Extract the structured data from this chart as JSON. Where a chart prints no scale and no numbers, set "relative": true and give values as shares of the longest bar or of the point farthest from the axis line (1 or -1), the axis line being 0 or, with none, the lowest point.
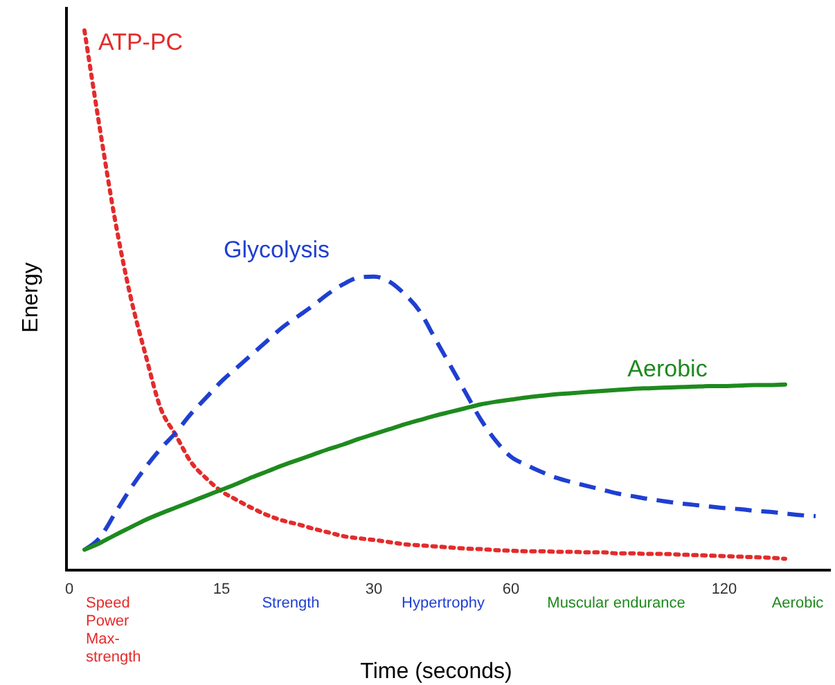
{
  "chart_data": {
    "type": "line",
    "relative": true,
    "xlabel": "Time (seconds)",
    "ylabel": "Energy",
    "categories": [
      "0",
      null,
      null,
      null,
      null,
      null,
      null,
      null,
      null,
      null,
      "15",
      null,
      null,
      null,
      null,
      null,
      null,
      null,
      null,
      null,
      "30",
      null,
      null,
      null,
      null,
      null,
      null,
      null,
      null,
      "60",
      null,
      null,
      null,
      null,
      null,
      null,
      null,
      null,
      null,
      null,
      null,
      null,
      null,
      "120",
      null,
      null,
      null,
      null,
      null,
      null,
      null
    ],
    "annotations": [
      "Speed Power Max-strength",
      "Strength",
      "Hypertrophy",
      "Muscular endurance",
      "Aerobic"
    ],
    "series": [
      {
        "name": "ATP-PC",
        "color": "#e32b2b",
        "line_style": "dotted",
        "values": [
          null,
          1,
          0.82,
          0.65,
          0.51,
          0.4,
          0.3,
          0.25,
          0.2,
          0.17,
          0.146,
          0.13,
          0.115,
          0.102,
          0.092,
          0.085,
          0.077,
          0.07,
          0.063,
          0.059,
          0.056,
          0.052,
          0.048,
          0.046,
          0.044,
          0.042,
          0.04,
          0.039,
          0.037,
          0.036,
          0.035,
          0.035,
          0.034,
          0.034,
          0.033,
          0.033,
          0.031,
          0.031,
          0.03,
          0.03,
          0.029,
          0.028,
          0.027,
          0.026,
          0.025,
          0.024,
          0.023,
          0.021,
          null,
          null,
          null
        ]
      },
      {
        "name": "Glycolysis",
        "color": "#1f3fd1",
        "line_style": "dashed",
        "values": [
          null,
          0.038,
          0.06,
          0.105,
          0.15,
          0.19,
          0.225,
          0.255,
          0.29,
          0.32,
          0.35,
          0.375,
          0.4,
          0.425,
          0.45,
          0.47,
          0.49,
          0.512,
          0.53,
          0.542,
          0.544,
          0.535,
          0.512,
          0.48,
          0.43,
          0.38,
          0.33,
          0.28,
          0.24,
          0.21,
          0.195,
          0.182,
          0.171,
          0.163,
          0.156,
          0.149,
          0.142,
          0.137,
          0.132,
          0.128,
          0.124,
          0.121,
          0.118,
          0.115,
          0.113,
          0.11,
          0.108,
          0.105,
          0.102,
          0.1,
          null
        ]
      },
      {
        "name": "Aerobic",
        "color": "#1e8a1e",
        "line_style": "solid",
        "values": [
          null,
          0.038,
          0.05,
          0.065,
          0.079,
          0.093,
          0.105,
          0.116,
          0.127,
          0.138,
          0.149,
          0.16,
          0.172,
          0.183,
          0.194,
          0.204,
          0.214,
          0.224,
          0.233,
          0.243,
          0.252,
          0.261,
          0.27,
          0.278,
          0.286,
          0.293,
          0.3,
          0.307,
          0.312,
          0.316,
          0.32,
          0.323,
          0.326,
          0.328,
          0.33,
          0.332,
          0.334,
          0.336,
          0.337,
          0.338,
          0.339,
          0.34,
          0.341,
          0.341,
          0.342,
          0.343,
          0.343,
          0.344,
          null,
          null,
          null
        ]
      }
    ]
  }
}
